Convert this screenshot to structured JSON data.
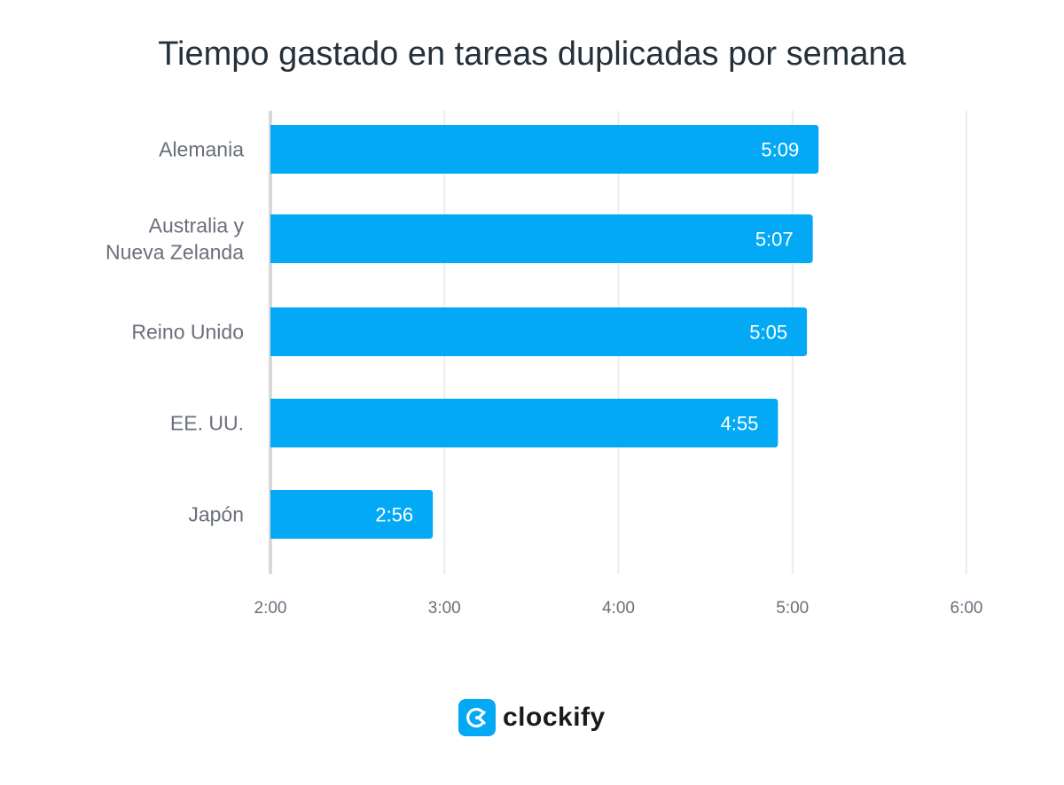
{
  "chart_data": {
    "type": "bar",
    "orientation": "horizontal",
    "title": "Tiempo gastado en tareas duplicadas por semana",
    "categories": [
      [
        "Alemania"
      ],
      [
        "Australia y",
        "Nueva Zelanda"
      ],
      [
        "Reino Unido"
      ],
      [
        "EE. UU."
      ],
      [
        "Japón"
      ]
    ],
    "values": [
      "5:09",
      "5:07",
      "5:05",
      "4:55",
      "2:56"
    ],
    "data_labels": [
      "5:09",
      "5:07",
      "5:05",
      "4:55",
      "2:56"
    ],
    "xlim": [
      "2:00",
      "6:00"
    ],
    "x_ticks": [
      "2:00",
      "3:00",
      "4:00",
      "5:00",
      "6:00"
    ],
    "xlabel": "",
    "ylabel": "",
    "grid": "vertical",
    "bar_color": "#03a9f4"
  },
  "brand": {
    "name": "clockify",
    "color": "#03a9f4"
  }
}
